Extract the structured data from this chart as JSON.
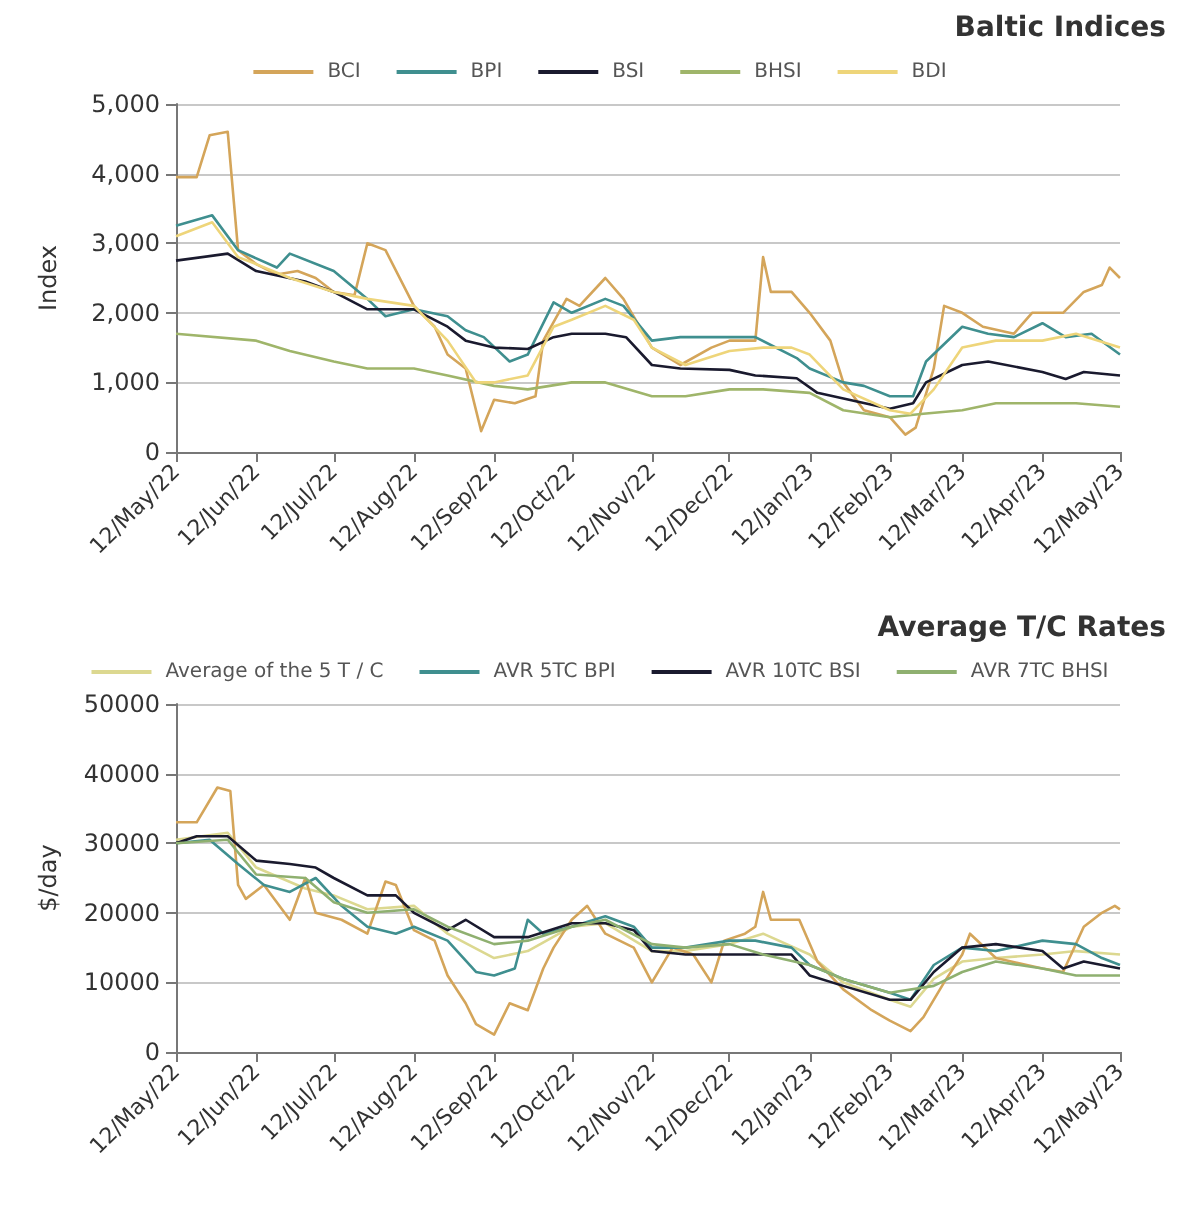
{
  "chart_data": [
    {
      "type": "line",
      "title": "Baltic Indices",
      "ylabel": "Index",
      "legend": "top",
      "grid": "y",
      "marker": "none",
      "line_style": "solid",
      "xlim": [
        "2022-05-12",
        "2023-05-12"
      ],
      "xticks": [
        {
          "value": "2022-05-12",
          "label": "12/May/22"
        },
        {
          "value": "2022-06-12",
          "label": "12/Jun/22"
        },
        {
          "value": "2022-07-12",
          "label": "12/Jul/22"
        },
        {
          "value": "2022-08-12",
          "label": "12/Aug/22"
        },
        {
          "value": "2022-09-12",
          "label": "12/Sep/22"
        },
        {
          "value": "2022-10-12",
          "label": "12/Oct/22"
        },
        {
          "value": "2022-11-12",
          "label": "12/Nov/22"
        },
        {
          "value": "2022-12-12",
          "label": "12/Dec/22"
        },
        {
          "value": "2023-01-12",
          "label": "12/Jan/23"
        },
        {
          "value": "2023-02-12",
          "label": "12/Feb/23"
        },
        {
          "value": "2023-03-12",
          "label": "12/Mar/23"
        },
        {
          "value": "2023-04-12",
          "label": "12/Apr/23"
        },
        {
          "value": "2023-05-12",
          "label": "12/May/23"
        }
      ],
      "ylim": [
        0,
        5000
      ],
      "yticks": [
        0,
        {
          "value": 1000,
          "label": "1,000"
        },
        {
          "value": 2000,
          "label": "2,000"
        },
        {
          "value": 3000,
          "label": "3,000"
        },
        {
          "value": 4000,
          "label": "4,000"
        },
        {
          "value": 5000,
          "label": "5,000"
        }
      ],
      "series": [
        {
          "name": "BCI",
          "color": "#d4a55a",
          "x": [
            "2022-05-12",
            "2022-05-20",
            "2022-05-25",
            "2022-06-01",
            "2022-06-05",
            "2022-06-12",
            "2022-06-20",
            "2022-06-28",
            "2022-07-05",
            "2022-07-12",
            "2022-07-20",
            "2022-07-25",
            "2022-08-01",
            "2022-08-12",
            "2022-08-20",
            "2022-08-25",
            "2022-09-01",
            "2022-09-07",
            "2022-09-12",
            "2022-09-20",
            "2022-09-28",
            "2022-10-01",
            "2022-10-10",
            "2022-10-15",
            "2022-10-25",
            "2022-11-01",
            "2022-11-12",
            "2022-11-23",
            "2022-12-05",
            "2022-12-12",
            "2022-12-22",
            "2022-12-25",
            "2022-12-28",
            "2023-01-05",
            "2023-01-12",
            "2023-01-20",
            "2023-01-25",
            "2023-02-02",
            "2023-02-12",
            "2023-02-18",
            "2023-02-22",
            "2023-03-01",
            "2023-03-05",
            "2023-03-12",
            "2023-03-20",
            "2023-04-01",
            "2023-04-08",
            "2023-04-20",
            "2023-04-28",
            "2023-05-05",
            "2023-05-08",
            "2023-05-12"
          ],
          "values": [
            3950,
            3950,
            4550,
            4600,
            2900,
            2700,
            2550,
            2600,
            2500,
            2300,
            2250,
            3000,
            2900,
            2100,
            1800,
            1400,
            1200,
            300,
            750,
            700,
            800,
            1600,
            2200,
            2100,
            2500,
            2200,
            1500,
            1250,
            1500,
            1600,
            1600,
            2800,
            2300,
            2300,
            2000,
            1600,
            1000,
            600,
            500,
            250,
            350,
            1200,
            2100,
            2000,
            1800,
            1700,
            2000,
            2000,
            2300,
            2400,
            2650,
            2500
          ]
        },
        {
          "name": "BPI",
          "color": "#3f8f8f",
          "x": [
            "2022-05-12",
            "2022-05-26",
            "2022-06-05",
            "2022-06-20",
            "2022-06-25",
            "2022-07-12",
            "2022-07-25",
            "2022-08-01",
            "2022-08-12",
            "2022-08-25",
            "2022-09-01",
            "2022-09-08",
            "2022-09-18",
            "2022-09-25",
            "2022-10-05",
            "2022-10-12",
            "2022-10-25",
            "2022-11-01",
            "2022-11-12",
            "2022-11-23",
            "2022-12-12",
            "2022-12-22",
            "2023-01-07",
            "2023-01-12",
            "2023-01-25",
            "2023-02-02",
            "2023-02-12",
            "2023-02-21",
            "2023-02-26",
            "2023-03-12",
            "2023-03-22",
            "2023-04-01",
            "2023-04-12",
            "2023-04-21",
            "2023-05-01",
            "2023-05-12"
          ],
          "values": [
            3250,
            3400,
            2900,
            2650,
            2850,
            2600,
            2200,
            1950,
            2050,
            1950,
            1750,
            1650,
            1300,
            1400,
            2150,
            2000,
            2200,
            2100,
            1600,
            1650,
            1650,
            1650,
            1350,
            1200,
            1000,
            950,
            800,
            800,
            1300,
            1800,
            1700,
            1650,
            1850,
            1650,
            1700,
            1400
          ]
        },
        {
          "name": "BSI",
          "color": "#1a1a2e",
          "x": [
            "2022-05-12",
            "2022-06-01",
            "2022-06-12",
            "2022-07-01",
            "2022-07-12",
            "2022-07-25",
            "2022-08-12",
            "2022-08-25",
            "2022-09-01",
            "2022-09-12",
            "2022-09-25",
            "2022-10-05",
            "2022-10-12",
            "2022-10-25",
            "2022-11-02",
            "2022-11-12",
            "2022-11-23",
            "2022-12-12",
            "2022-12-22",
            "2023-01-07",
            "2023-01-15",
            "2023-02-12",
            "2023-02-21",
            "2023-02-26",
            "2023-03-12",
            "2023-03-22",
            "2023-04-12",
            "2023-04-21",
            "2023-04-28",
            "2023-05-12"
          ],
          "values": [
            2750,
            2850,
            2600,
            2450,
            2300,
            2050,
            2050,
            1800,
            1600,
            1500,
            1480,
            1650,
            1700,
            1700,
            1650,
            1250,
            1200,
            1180,
            1100,
            1060,
            850,
            620,
            700,
            1000,
            1250,
            1300,
            1150,
            1050,
            1150,
            1100
          ]
        },
        {
          "name": "BHSI",
          "color": "#9fb56a",
          "x": [
            "2022-05-12",
            "2022-06-12",
            "2022-06-25",
            "2022-07-12",
            "2022-07-25",
            "2022-08-12",
            "2022-08-25",
            "2022-09-12",
            "2022-09-25",
            "2022-10-12",
            "2022-10-25",
            "2022-11-12",
            "2022-11-25",
            "2022-12-12",
            "2022-12-25",
            "2023-01-12",
            "2023-01-25",
            "2023-02-12",
            "2023-02-25",
            "2023-03-12",
            "2023-03-25",
            "2023-04-12",
            "2023-04-25",
            "2023-05-12"
          ],
          "values": [
            1700,
            1600,
            1450,
            1300,
            1200,
            1200,
            1100,
            950,
            900,
            1000,
            1000,
            800,
            800,
            900,
            900,
            850,
            600,
            500,
            550,
            600,
            700,
            700,
            700,
            650
          ]
        },
        {
          "name": "BDI",
          "color": "#eed57a",
          "x": [
            "2022-05-12",
            "2022-05-26",
            "2022-06-05",
            "2022-06-12",
            "2022-06-25",
            "2022-07-12",
            "2022-07-25",
            "2022-08-12",
            "2022-08-25",
            "2022-09-05",
            "2022-09-12",
            "2022-09-25",
            "2022-10-05",
            "2022-10-12",
            "2022-10-25",
            "2022-11-05",
            "2022-11-12",
            "2022-11-25",
            "2022-12-12",
            "2022-12-25",
            "2023-01-05",
            "2023-01-12",
            "2023-01-25",
            "2023-02-12",
            "2023-02-20",
            "2023-03-01",
            "2023-03-12",
            "2023-03-25",
            "2023-04-12",
            "2023-04-25",
            "2023-05-12"
          ],
          "values": [
            3100,
            3300,
            2800,
            2700,
            2500,
            2300,
            2200,
            2100,
            1600,
            1000,
            1000,
            1100,
            1800,
            1900,
            2100,
            1900,
            1500,
            1250,
            1450,
            1500,
            1500,
            1400,
            900,
            600,
            550,
            900,
            1500,
            1600,
            1600,
            1700,
            1500
          ]
        }
      ]
    },
    {
      "type": "line",
      "title": "Average T/C Rates",
      "ylabel": "$/day",
      "legend": "top",
      "grid": "y",
      "marker": "none",
      "line_style": "solid",
      "xlim": [
        "2022-05-12",
        "2023-05-12"
      ],
      "xticks": [
        {
          "value": "2022-05-12",
          "label": "12/May/22"
        },
        {
          "value": "2022-06-12",
          "label": "12/Jun/22"
        },
        {
          "value": "2022-07-12",
          "label": "12/Jul/22"
        },
        {
          "value": "2022-08-12",
          "label": "12/Aug/22"
        },
        {
          "value": "2022-09-12",
          "label": "12/Sep/22"
        },
        {
          "value": "2022-10-12",
          "label": "12/Oct/22"
        },
        {
          "value": "2022-11-12",
          "label": "12/Nov/22"
        },
        {
          "value": "2022-12-12",
          "label": "12/Dec/22"
        },
        {
          "value": "2023-01-12",
          "label": "12/Jan/23"
        },
        {
          "value": "2023-02-12",
          "label": "12/Feb/23"
        },
        {
          "value": "2023-03-12",
          "label": "12/Mar/23"
        },
        {
          "value": "2023-04-12",
          "label": "12/Apr/23"
        },
        {
          "value": "2023-05-12",
          "label": "12/May/23"
        }
      ],
      "ylim": [
        0,
        50000
      ],
      "yticks": [
        0,
        10000,
        20000,
        30000,
        40000,
        50000
      ],
      "series": [
        {
          "name": "Average of the 5 T / C",
          "color": "#dcd890",
          "x": [
            "2022-05-12",
            "2022-06-01",
            "2022-06-12",
            "2022-07-01",
            "2022-07-12",
            "2022-07-25",
            "2022-08-12",
            "2022-08-25",
            "2022-09-12",
            "2022-09-25",
            "2022-10-12",
            "2022-10-25",
            "2022-11-12",
            "2022-11-25",
            "2022-12-12",
            "2022-12-25",
            "2023-01-12",
            "2023-01-25",
            "2023-02-12",
            "2023-02-20",
            "2023-03-01",
            "2023-03-12",
            "2023-03-25",
            "2023-04-12",
            "2023-04-25",
            "2023-05-12"
          ],
          "values": [
            30500,
            31500,
            26500,
            23500,
            22500,
            20500,
            21000,
            17000,
            13500,
            14500,
            18000,
            18500,
            14500,
            14500,
            15500,
            17000,
            14000,
            10000,
            7500,
            6500,
            10500,
            13000,
            13500,
            14000,
            14500,
            14000
          ]
        },
        {
          "color": "#d4a55a",
          "x": [
            "2022-05-12",
            "2022-05-20",
            "2022-05-28",
            "2022-06-02",
            "2022-06-05",
            "2022-06-08",
            "2022-06-15",
            "2022-06-25",
            "2022-07-01",
            "2022-07-05",
            "2022-07-15",
            "2022-07-25",
            "2022-08-01",
            "2022-08-05",
            "2022-08-12",
            "2022-08-20",
            "2022-08-25",
            "2022-09-01",
            "2022-09-05",
            "2022-09-12",
            "2022-09-18",
            "2022-09-25",
            "2022-10-01",
            "2022-10-05",
            "2022-10-12",
            "2022-10-18",
            "2022-10-25",
            "2022-11-05",
            "2022-11-12",
            "2022-11-20",
            "2022-11-28",
            "2022-12-05",
            "2022-12-10",
            "2022-12-18",
            "2022-12-22",
            "2022-12-25",
            "2022-12-28",
            "2023-01-08",
            "2023-01-15",
            "2023-01-25",
            "2023-02-05",
            "2023-02-12",
            "2023-02-20",
            "2023-02-25",
            "2023-03-05",
            "2023-03-12",
            "2023-03-15",
            "2023-03-25",
            "2023-04-12",
            "2023-04-20",
            "2023-04-28",
            "2023-05-05",
            "2023-05-10",
            "2023-05-12"
          ],
          "values": [
            33000,
            33000,
            38000,
            37500,
            24000,
            22000,
            24000,
            19000,
            25000,
            20000,
            19000,
            17000,
            24500,
            24000,
            17500,
            16000,
            11000,
            7000,
            4000,
            2500,
            7000,
            6000,
            12000,
            15000,
            19000,
            21000,
            17000,
            15000,
            10000,
            15000,
            14000,
            10000,
            16000,
            17000,
            18000,
            23000,
            19000,
            19000,
            13000,
            9000,
            6000,
            4500,
            3000,
            5000,
            10000,
            14000,
            17000,
            13500,
            12000,
            11500,
            18000,
            20000,
            21000,
            20500
          ]
        },
        {
          "name": "AVR 5TC BPI",
          "color": "#3f8f8f",
          "x": [
            "2022-05-12",
            "2022-05-25",
            "2022-06-05",
            "2022-06-15",
            "2022-06-25",
            "2022-07-05",
            "2022-07-15",
            "2022-07-25",
            "2022-08-05",
            "2022-08-12",
            "2022-08-25",
            "2022-09-05",
            "2022-09-12",
            "2022-09-20",
            "2022-09-25",
            "2022-10-01",
            "2022-10-12",
            "2022-10-25",
            "2022-11-05",
            "2022-11-12",
            "2022-11-25",
            "2022-12-12",
            "2022-12-22",
            "2023-01-05",
            "2023-01-12",
            "2023-01-25",
            "2023-02-12",
            "2023-02-20",
            "2023-03-01",
            "2023-03-12",
            "2023-03-25",
            "2023-04-12",
            "2023-04-25",
            "2023-05-05",
            "2023-05-12"
          ],
          "values": [
            30000,
            30500,
            27000,
            24000,
            23000,
            25000,
            21000,
            18000,
            17000,
            18000,
            16000,
            11500,
            11000,
            12000,
            19000,
            17000,
            18000,
            19500,
            18000,
            15000,
            15000,
            16000,
            16000,
            15000,
            12500,
            10500,
            8500,
            7500,
            12500,
            15000,
            14500,
            16000,
            15500,
            13500,
            12500
          ]
        },
        {
          "name": "AVR 10TC BSI",
          "color": "#1a1a2e",
          "x": [
            "2022-05-12",
            "2022-05-20",
            "2022-06-01",
            "2022-06-12",
            "2022-06-25",
            "2022-07-05",
            "2022-07-12",
            "2022-07-25",
            "2022-08-05",
            "2022-08-12",
            "2022-08-25",
            "2022-09-01",
            "2022-09-12",
            "2022-09-25",
            "2022-10-12",
            "2022-10-25",
            "2022-11-05",
            "2022-11-12",
            "2022-11-25",
            "2022-12-12",
            "2023-01-05",
            "2023-01-12",
            "2023-01-25",
            "2023-02-12",
            "2023-02-20",
            "2023-03-01",
            "2023-03-12",
            "2023-03-25",
            "2023-04-12",
            "2023-04-20",
            "2023-04-28",
            "2023-05-12"
          ],
          "values": [
            30000,
            31000,
            31000,
            27500,
            27000,
            26500,
            25000,
            22500,
            22500,
            20000,
            17500,
            19000,
            16500,
            16500,
            18500,
            18500,
            17500,
            14500,
            14000,
            14000,
            14000,
            11000,
            9500,
            7500,
            7500,
            11500,
            15000,
            15500,
            14500,
            12000,
            13000,
            12000
          ]
        },
        {
          "name": "AVR 7TC BHSI",
          "color": "#8fb070",
          "x": [
            "2022-05-12",
            "2022-06-01",
            "2022-06-12",
            "2022-07-01",
            "2022-07-12",
            "2022-07-25",
            "2022-08-12",
            "2022-08-25",
            "2022-09-12",
            "2022-09-25",
            "2022-10-12",
            "2022-10-25",
            "2022-11-12",
            "2022-11-25",
            "2022-12-12",
            "2022-12-25",
            "2023-01-12",
            "2023-01-25",
            "2023-02-12",
            "2023-03-01",
            "2023-03-12",
            "2023-03-25",
            "2023-04-12",
            "2023-04-25",
            "2023-05-12"
          ],
          "values": [
            30000,
            30500,
            25500,
            25000,
            21500,
            20000,
            20500,
            18000,
            15500,
            16000,
            18000,
            19000,
            15500,
            15000,
            15500,
            14000,
            12500,
            10500,
            8500,
            9500,
            11500,
            13000,
            12000,
            11000,
            11000
          ]
        }
      ]
    }
  ]
}
